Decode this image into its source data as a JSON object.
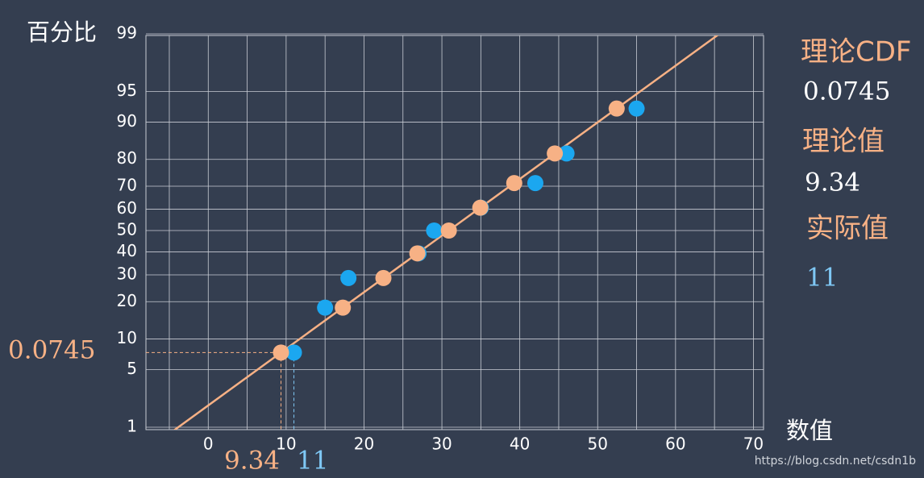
{
  "chart_data": {
    "type": "probability",
    "y_label": "百分比",
    "x_label": "数值",
    "xlim": [
      -8,
      71.3
    ],
    "xticks": [
      0,
      10,
      20,
      30,
      40,
      50,
      60,
      70
    ],
    "x_minor_grid": [
      -5,
      5,
      15,
      25,
      35,
      45,
      55,
      65
    ],
    "ylim": [
      1,
      99
    ],
    "yticks": [
      1,
      5,
      10,
      20,
      30,
      40,
      50,
      60,
      70,
      80,
      90,
      95,
      99
    ],
    "y_scale": "normal-probability",
    "grid": true,
    "series": [
      {
        "color": "#1ba7f0",
        "x": [
          11,
          15,
          18,
          27,
          29,
          35,
          42,
          46,
          55
        ],
        "values": [
          7.45,
          18.09,
          28.72,
          39.36,
          50,
          60.64,
          71.28,
          81.91,
          92.55
        ]
      },
      {
        "color": "#f7b185",
        "x": [
          9.34,
          17.28,
          22.49,
          26.85,
          30.89,
          34.93,
          39.29,
          44.5,
          52.44
        ],
        "values": [
          7.45,
          18.09,
          28.72,
          39.36,
          50,
          60.64,
          71.28,
          81.91,
          92.55
        ],
        "fit_line": true
      }
    ],
    "annotations": {
      "cdf_title": "理论CDF",
      "cdf_value": "0.0745",
      "theory_title": "理论值",
      "actual_title": "实际值"
    },
    "watermark": "https://blog.csdn.net/csdn1b"
  }
}
